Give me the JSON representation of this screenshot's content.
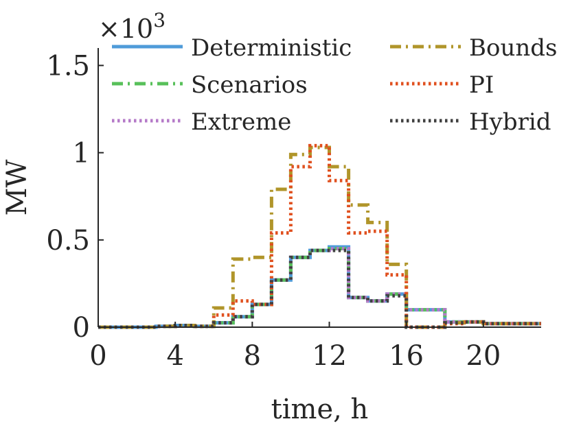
{
  "chart_data": {
    "type": "line",
    "step": true,
    "title": "",
    "xlabel": "time, h",
    "ylabel": "MW",
    "y_scale_label": "×10",
    "y_scale_exponent": "3",
    "xlim": [
      0,
      23
    ],
    "ylim": [
      0,
      1.6
    ],
    "xticks": [
      0,
      4,
      8,
      12,
      16,
      20
    ],
    "xtick_labels": [
      "0",
      "4",
      "8",
      "12",
      "16",
      "20"
    ],
    "yticks": [
      0,
      0.5,
      1,
      1.5
    ],
    "ytick_labels": [
      "0",
      "0.5",
      "1",
      "1.5"
    ],
    "grid": false,
    "legend_position": "top",
    "series": [
      {
        "name": "Deterministic",
        "color": "#4f9bd9",
        "dash": "solid",
        "values": [
          0.0,
          0.0,
          0.0,
          0.005,
          0.01,
          0.005,
          0.025,
          0.06,
          0.13,
          0.27,
          0.4,
          0.44,
          0.46,
          0.17,
          0.15,
          0.19,
          0.1,
          0.1,
          0.03,
          0.03,
          0.02,
          0.02,
          0.02
        ]
      },
      {
        "name": "Scenarios",
        "color": "#58c05a",
        "dash": "dashdot",
        "values": [
          0.0,
          0.0,
          0.0,
          0.005,
          0.01,
          0.005,
          0.025,
          0.06,
          0.13,
          0.27,
          0.4,
          0.44,
          0.45,
          0.17,
          0.15,
          0.19,
          0.1,
          0.1,
          0.03,
          0.03,
          0.02,
          0.02,
          0.02
        ]
      },
      {
        "name": "Extreme",
        "color": "#b57ac8",
        "dash": "dotted",
        "values": [
          0.0,
          0.0,
          0.0,
          0.005,
          0.01,
          0.005,
          0.025,
          0.06,
          0.13,
          0.27,
          0.4,
          0.44,
          0.45,
          0.17,
          0.15,
          0.19,
          0.1,
          0.1,
          0.03,
          0.03,
          0.02,
          0.02,
          0.02
        ]
      },
      {
        "name": "Bounds",
        "color": "#b0952a",
        "dash": "dashdot",
        "values": [
          0.0,
          0.0,
          0.0,
          0.005,
          0.01,
          0.005,
          0.11,
          0.39,
          0.4,
          0.79,
          0.99,
          1.03,
          0.92,
          0.7,
          0.6,
          0.36,
          0.0,
          0.0,
          0.025,
          0.03,
          0.02,
          0.02,
          0.02
        ]
      },
      {
        "name": "PI",
        "color": "#e0501f",
        "dash": "dotted",
        "values": [
          0.0,
          0.0,
          0.0,
          0.005,
          0.01,
          0.005,
          0.07,
          0.15,
          0.13,
          0.54,
          0.92,
          1.04,
          0.84,
          0.54,
          0.55,
          0.3,
          0.0,
          0.0,
          0.02,
          0.03,
          0.02,
          0.02,
          0.02
        ]
      },
      {
        "name": "Hybrid",
        "color": "#404040",
        "dash": "dotted",
        "values": [
          0.0,
          0.0,
          0.0,
          0.005,
          0.01,
          0.005,
          0.025,
          0.06,
          0.13,
          0.27,
          0.4,
          0.44,
          0.44,
          0.17,
          0.15,
          0.18,
          0.0,
          0.0,
          0.025,
          0.03,
          0.02,
          0.02,
          0.02
        ]
      }
    ]
  }
}
